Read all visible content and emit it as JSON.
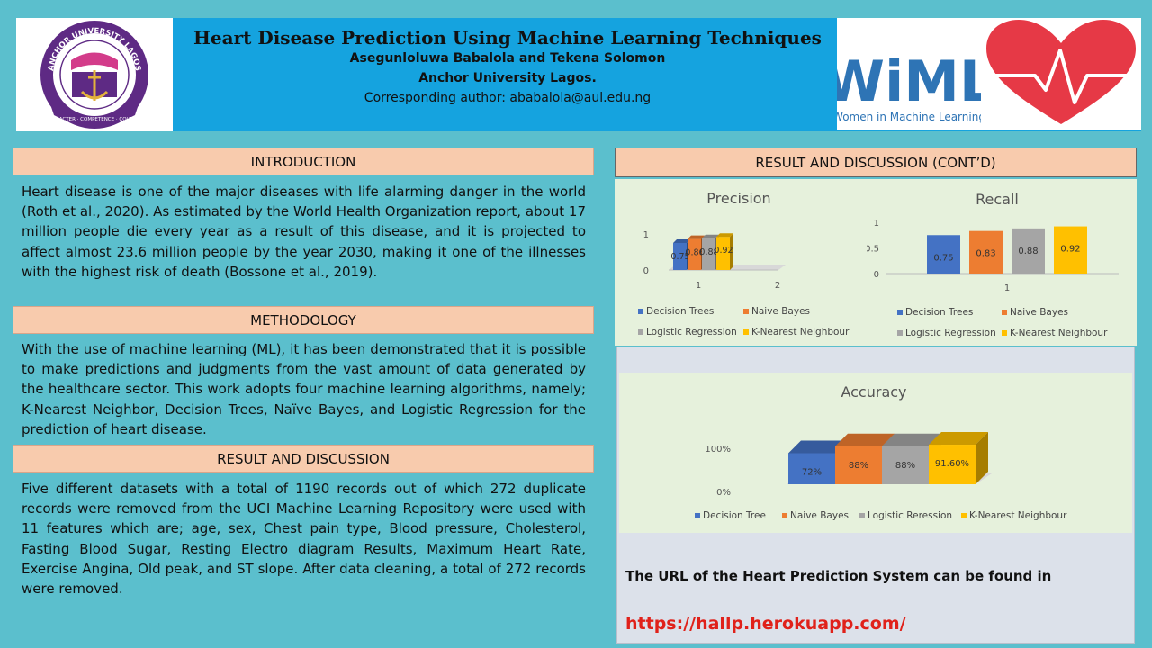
{
  "header": {
    "title": "Heart Disease Prediction Using Machine Learning Techniques",
    "authors": "Asegunloluwa Babalola and Tekena Solomon",
    "institution": "Anchor University Lagos.",
    "corresponding": "Corresponding author: ababalola@aul.edu.ng",
    "logo_left": {
      "ring_text": "ANCHOR UNIVERSITY LAGOS",
      "motto": "CHARACTER · COMPETENCE · COURAGE"
    },
    "logo_wiml": {
      "letters": "WiML",
      "caption": "Women in Machine Learning"
    }
  },
  "sections": {
    "introduction": {
      "heading": "INTRODUCTION",
      "text": "Heart disease is one of the major diseases with life alarming danger in the world (Roth et al., 2020). As estimated by the World Health Organization report, about 17 million people die every year as a result of this disease, and it is projected to affect almost 23.6 million people by the year 2030, making it one of the illnesses with the highest risk of death (Bossone et al., 2019)."
    },
    "methodology": {
      "heading": "METHODOLOGY",
      "text": "With the use of machine learning (ML), it has been demonstrated that it is possible to make predictions and judgments from the vast amount of data generated by the healthcare sector.  This work adopts four machine learning algorithms, namely; K-Nearest Neighbor, Decision Trees, Naïve Bayes, and Logistic Regression for the prediction of heart disease."
    },
    "results": {
      "heading": "RESULT AND DISCUSSION",
      "text": "Five different datasets with a total of 1190 records out of which 272 duplicate records were removed from the UCI Machine Learning Repository were used with 11 features which are; age, sex, Chest pain type, Blood pressure, Cholesterol, Fasting Blood Sugar, Resting Electro diagram Results, Maximum Heart Rate, Exercise Angina, Old peak, and ST slope. After data cleaning, a total of 272 records were removed."
    },
    "results_contd": {
      "heading": "RESULT AND DISCUSSION (CONT’D)",
      "url_label": "The URL of the Heart Prediction System can be found in",
      "url": "https://hallp.herokuapp.com/"
    }
  },
  "colors": {
    "blue": "#4472c4",
    "orange": "#ed7d31",
    "gray": "#a5a5a5",
    "yellow": "#ffc000"
  },
  "chart_data": [
    {
      "type": "bar",
      "title": "Precision",
      "categories": [
        "1",
        "2"
      ],
      "ylim": [
        0,
        1
      ],
      "yticks": [
        "0",
        "1"
      ],
      "series": [
        {
          "name": "Decision Trees",
          "values": [
            0.75,
            null
          ],
          "label": "0.75"
        },
        {
          "name": "Naive Bayes",
          "values": [
            0.86,
            null
          ],
          "label": "0.86"
        },
        {
          "name": "Logistic Regression",
          "values": [
            0.88,
            null
          ],
          "label": "0.88"
        },
        {
          "name": "K-Nearest Neighbour",
          "values": [
            0.92,
            null
          ],
          "label": "0.92"
        }
      ],
      "legend": "bottom"
    },
    {
      "type": "bar",
      "title": "Recall",
      "categories": [
        "1"
      ],
      "ylim": [
        0,
        1
      ],
      "yticks": [
        "0",
        "0.5",
        "1"
      ],
      "series": [
        {
          "name": "Decision Trees",
          "values": [
            0.75
          ],
          "label": "0.75"
        },
        {
          "name": "Naive Bayes",
          "values": [
            0.83
          ],
          "label": "0.83"
        },
        {
          "name": "Logistic Regression",
          "values": [
            0.88
          ],
          "label": "0.88"
        },
        {
          "name": "K-Nearest Neighbour",
          "values": [
            0.92
          ],
          "label": "0.92"
        }
      ],
      "legend": "bottom"
    },
    {
      "type": "bar",
      "title": "Accuracy",
      "categories": [
        ""
      ],
      "ylim": [
        0,
        1
      ],
      "yticks": [
        "0%",
        "100%"
      ],
      "series": [
        {
          "name": "Decision Tree",
          "values": [
            0.72
          ],
          "label": "72%"
        },
        {
          "name": "Naive Bayes",
          "values": [
            0.88
          ],
          "label": "88%"
        },
        {
          "name": "Logistic Reression",
          "values": [
            0.88
          ],
          "label": "88%"
        },
        {
          "name": "K-Nearest Neighbour",
          "values": [
            0.916
          ],
          "label": "91.60%"
        }
      ],
      "legend": "bottom"
    }
  ]
}
